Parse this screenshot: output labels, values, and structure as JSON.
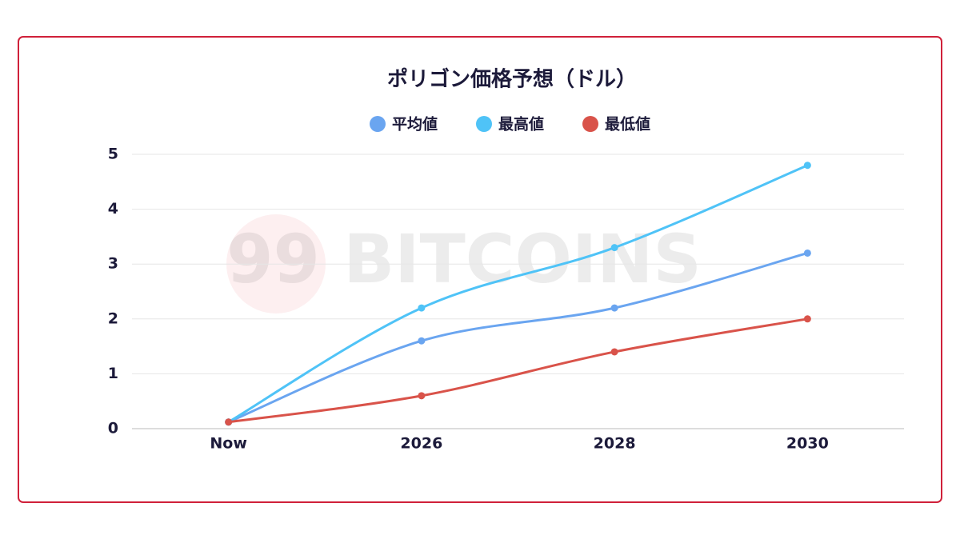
{
  "chart_data": {
    "type": "line",
    "title": "ポリゴン価格予想（ドル）",
    "watermark": "99 BITCOINS",
    "categories": [
      "Now",
      "2026",
      "2028",
      "2030"
    ],
    "series": [
      {
        "name": "平均値",
        "color": "#6aa5f0",
        "values": [
          0.12,
          1.6,
          2.2,
          3.2
        ]
      },
      {
        "name": "最高値",
        "color": "#4fc3f7",
        "values": [
          0.12,
          2.2,
          3.3,
          4.8
        ]
      },
      {
        "name": "最低値",
        "color": "#d9534a",
        "values": [
          0.12,
          0.6,
          1.4,
          2.0
        ]
      }
    ],
    "ylim": [
      0,
      5
    ],
    "yticks": [
      0,
      1,
      2,
      3,
      4,
      5
    ],
    "grid": true,
    "smooth": true
  }
}
